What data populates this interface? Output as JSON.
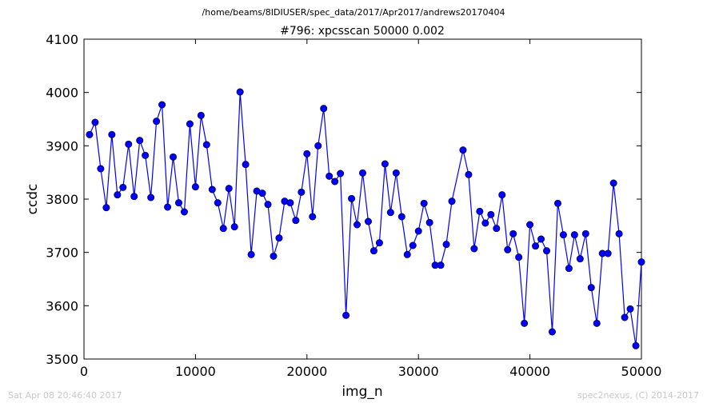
{
  "chart_data": {
    "type": "line",
    "suptitle": "/home/beams/8IDIUSER/spec_data/2017/Apr2017/andrews20170404",
    "title": "#796: xpcsscan 50000 0.002",
    "xlabel": "img_n",
    "ylabel": "ccdc",
    "xlim": [
      0,
      50000
    ],
    "ylim": [
      3500,
      4100
    ],
    "xticks": [
      0,
      10000,
      20000,
      30000,
      40000,
      50000
    ],
    "yticks": [
      3500,
      3600,
      3700,
      3800,
      3900,
      4000,
      4100
    ],
    "xtick_labels": [
      "0",
      "10000",
      "20000",
      "30000",
      "40000",
      "50000"
    ],
    "ytick_labels": [
      "3500",
      "3600",
      "3700",
      "3800",
      "3900",
      "4000",
      "4100"
    ],
    "grid": false,
    "line_color": "#0000ff",
    "marker_color": "#0000ff",
    "marker": "circle",
    "series": [
      {
        "x": [
          500,
          1000,
          1500,
          2000,
          2500,
          3000,
          3500,
          4000,
          4500,
          5000,
          5500,
          6000,
          6500,
          7000,
          7500,
          8000,
          8500,
          9000,
          9500,
          10000,
          10500,
          11000,
          11500,
          12000,
          12500,
          13000,
          13500,
          14000,
          14500,
          15000,
          15500,
          16000,
          16500,
          17000,
          17500,
          18000,
          18500,
          19000,
          19500,
          20000,
          20500,
          21000,
          21500,
          22000,
          22500,
          23000,
          23500,
          24000,
          24500,
          25000,
          25500,
          26000,
          26500,
          27000,
          27500,
          28000,
          28500,
          29000,
          29500,
          30000,
          30500,
          31000,
          31500,
          32000,
          32500,
          33000,
          34000,
          34500,
          35000,
          35500,
          36000,
          36500,
          37000,
          37500,
          38000,
          38500,
          39000,
          39500,
          40000,
          40500,
          41000,
          41500,
          42000,
          42500,
          43000,
          43500,
          44000,
          44500,
          45000,
          45500,
          46000,
          46500,
          47000,
          47500,
          48000,
          48500,
          49000,
          49500,
          50000
        ],
        "y": [
          3921,
          3944,
          3857,
          3784,
          3921,
          3808,
          3822,
          3903,
          3805,
          3910,
          3882,
          3803,
          3946,
          3977,
          3785,
          3879,
          3793,
          3776,
          3941,
          3823,
          3957,
          3902,
          3818,
          3793,
          3745,
          3820,
          3748,
          4001,
          3865,
          3696,
          3815,
          3811,
          3790,
          3693,
          3727,
          3796,
          3793,
          3760,
          3813,
          3885,
          3767,
          3900,
          3970,
          3843,
          3833,
          3848,
          3582,
          3801,
          3752,
          3849,
          3758,
          3703,
          3718,
          3866,
          3775,
          3849,
          3767,
          3696,
          3713,
          3740,
          3792,
          3756,
          3676,
          3676,
          3715,
          3796,
          3892,
          3846,
          3707,
          3777,
          3755,
          3771,
          3745,
          3808,
          3705,
          3735,
          3691,
          3567,
          3752,
          3712,
          3725,
          3703,
          3551,
          3792,
          3733,
          3670,
          3733,
          3688,
          3735,
          3634,
          3567,
          3698,
          3698,
          3830,
          3735,
          3578,
          3594,
          3525,
          3682
        ]
      }
    ]
  },
  "footer": {
    "left": "Sat Apr 08 20:46:40 2017",
    "right": "spec2nexus, (C) 2014-2017"
  }
}
